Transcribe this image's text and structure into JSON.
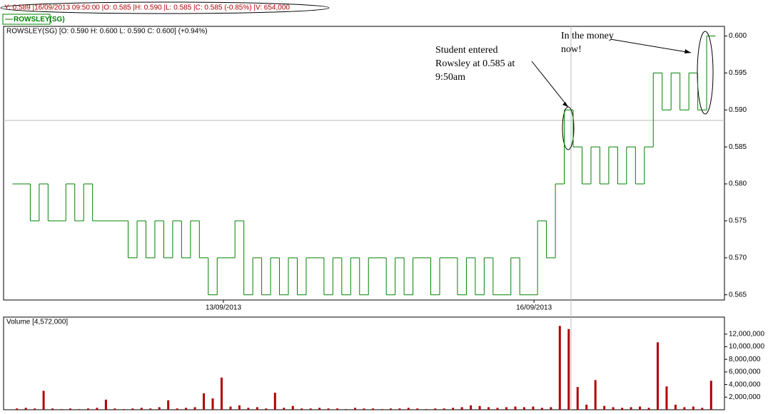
{
  "header": {
    "status": "Y: 0.589 |16/09/2013 09:50:00 |O: 0.585 |H: 0.590 |L: 0.585 |C: 0.585 (-0.85%) |V: 654,000"
  },
  "chart_data": [
    {
      "type": "line",
      "title": "ROWSLEY(SG) [O: 0.590  H: 0.600  L: 0.590  C: 0.600] (+0.94%)",
      "series": [
        {
          "name": "ROWSLEY(SG)",
          "color": "#008000",
          "values": [
            0.58,
            0.58,
            0.575,
            0.58,
            0.575,
            0.575,
            0.58,
            0.575,
            0.58,
            0.575,
            0.575,
            0.575,
            0.575,
            0.57,
            0.575,
            0.57,
            0.575,
            0.57,
            0.575,
            0.57,
            0.575,
            0.57,
            0.565,
            0.57,
            0.57,
            0.575,
            0.565,
            0.57,
            0.565,
            0.57,
            0.565,
            0.57,
            0.565,
            0.57,
            0.57,
            0.565,
            0.57,
            0.565,
            0.57,
            0.565,
            0.57,
            0.57,
            0.565,
            0.57,
            0.565,
            0.57,
            0.57,
            0.565,
            0.57,
            0.57,
            0.565,
            0.57,
            0.565,
            0.57,
            0.565,
            0.565,
            0.57,
            0.565,
            0.565,
            0.575,
            0.57,
            0.58,
            0.59,
            0.585,
            0.58,
            0.585,
            0.58,
            0.585,
            0.58,
            0.585,
            0.58,
            0.585,
            0.595,
            0.59,
            0.595,
            0.59,
            0.595,
            0.59,
            0.6
          ]
        }
      ],
      "xlim": [
        -1.5,
        79.5
      ],
      "xticks": [
        {
          "value": 23.2,
          "label": "13/09/2013"
        },
        {
          "value": 58.1,
          "label": "16/09/2013"
        }
      ],
      "ylim": [
        0.5643,
        0.6013
      ],
      "yticks": [
        0.565,
        {
          "value": 0.57,
          "label": "0.570"
        },
        0.575,
        {
          "value": 0.58,
          "label": "0.580"
        },
        0.585,
        {
          "value": 0.59,
          "label": "0.590"
        },
        0.595,
        {
          "value": 0.6,
          "label": "0.600"
        }
      ],
      "annotations": [
        [
          "Student entered",
          "Rowsley at 0.585 at",
          "9:50am"
        ],
        [
          "In the money",
          "now!"
        ]
      ]
    },
    {
      "type": "bar",
      "title": "Volume [4,572,000]",
      "color": "#b00000",
      "values": [
        200000,
        300000,
        200000,
        3000000,
        200000,
        100000,
        200000,
        100000,
        200000,
        300000,
        1600000,
        200000,
        100000,
        200000,
        300000,
        200000,
        400000,
        1500000,
        200000,
        300000,
        400000,
        2600000,
        1800000,
        5100000,
        500000,
        700000,
        300000,
        400000,
        200000,
        2700000,
        300000,
        600000,
        200000,
        200000,
        300000,
        200000,
        200000,
        100000,
        300000,
        200000,
        200000,
        100000,
        200000,
        200000,
        300000,
        200000,
        100000,
        200000,
        200000,
        300000,
        400000,
        700000,
        600000,
        400000,
        300000,
        400000,
        500000,
        400000,
        500000,
        300000,
        400000,
        13300000,
        12800000,
        3600000,
        800000,
        4700000,
        600000,
        400000,
        300000,
        400000,
        500000,
        300000,
        10700000,
        3700000,
        800000,
        400000,
        500000,
        300000,
        4600000
      ],
      "xlim": [
        -1.5,
        79.5
      ],
      "ylim": [
        0,
        14700000
      ],
      "yticks": [
        {
          "value": 2000000,
          "label": "2,000,000"
        },
        {
          "value": 4000000,
          "label": "4,000,000"
        },
        {
          "value": 6000000,
          "label": "6,000,000"
        },
        {
          "value": 8000000,
          "label": "8,000,000"
        },
        {
          "value": 10000000,
          "label": "10,000,000"
        },
        {
          "value": 12000000,
          "label": "12,000,000"
        }
      ]
    }
  ]
}
